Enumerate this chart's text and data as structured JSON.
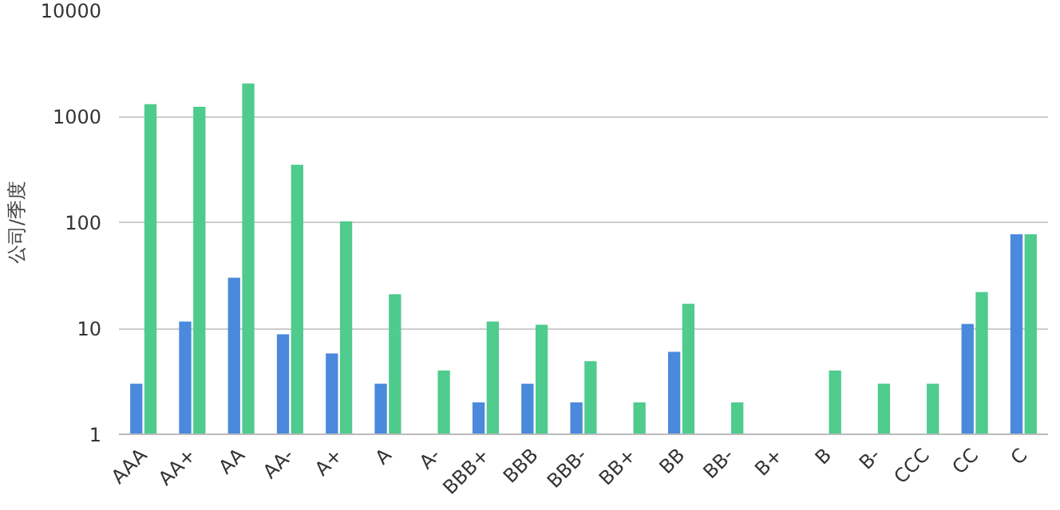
{
  "chart_data": {
    "type": "bar",
    "ylabel": "公司/季度",
    "categories": [
      "AAA",
      "AA+",
      "AA",
      "AA-",
      "A+",
      "A",
      "A-",
      "BBB+",
      "BBB",
      "BBB-",
      "BB+",
      "BB",
      "BB-",
      "B+",
      "B",
      "B-",
      "CCC",
      "CC",
      "C"
    ],
    "series": [
      {
        "color": "#4a89dc",
        "values": [
          3,
          11.6,
          30,
          8.8,
          5.8,
          3,
          null,
          2,
          3,
          2,
          null,
          6,
          null,
          null,
          null,
          null,
          null,
          11,
          77
        ]
      },
      {
        "color": "#4ecb8d",
        "values": [
          1300,
          1230,
          2040,
          350,
          102,
          21,
          4,
          11.6,
          10.8,
          4.9,
          2,
          17,
          2,
          null,
          4,
          3,
          3,
          22,
          77
        ]
      }
    ],
    "log": true,
    "ylim": [
      1,
      10000
    ],
    "yticks": [
      1,
      10,
      100,
      1000,
      10000
    ],
    "grid": "y"
  }
}
